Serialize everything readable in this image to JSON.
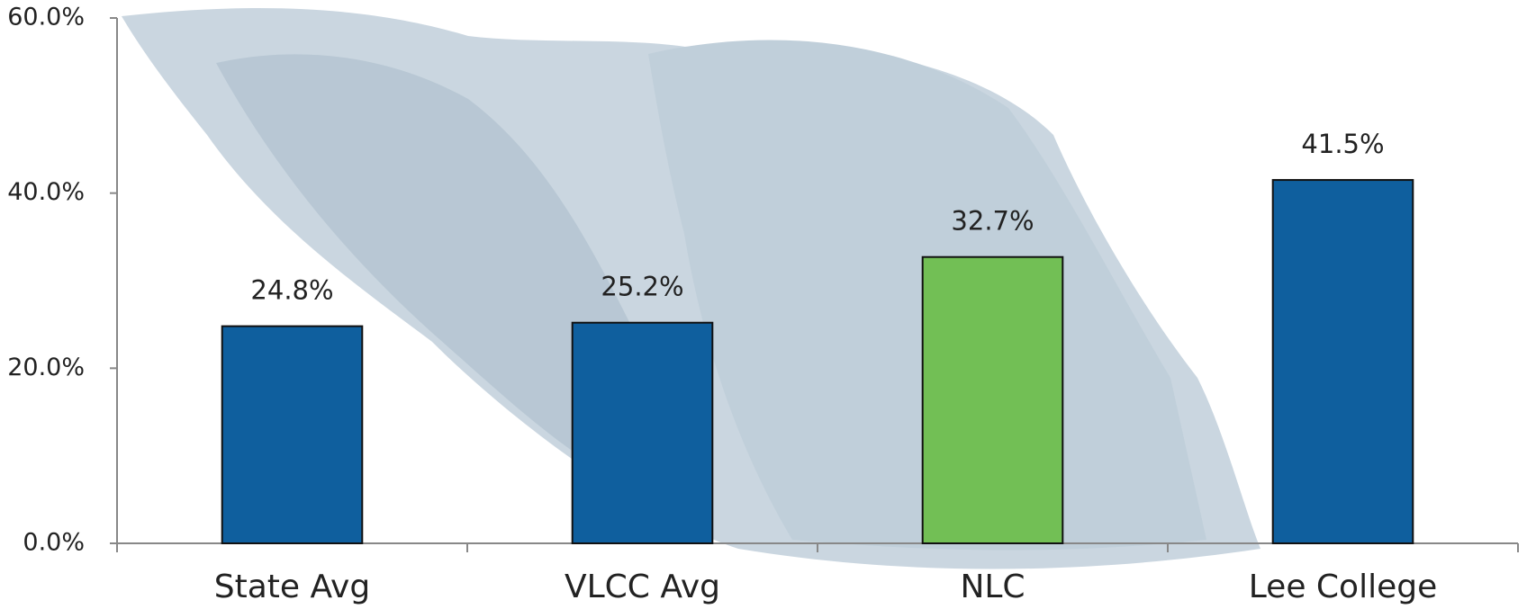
{
  "chart_data": {
    "type": "bar",
    "categories": [
      "State Avg",
      "VLCC Avg",
      "NLC",
      "Lee College"
    ],
    "values": [
      24.8,
      25.2,
      32.7,
      41.5
    ],
    "value_labels": [
      "24.8%",
      "25.2%",
      "32.7%",
      "41.5%"
    ],
    "colors": [
      "#0f5f9e",
      "#0f5f9e",
      "#72bf55",
      "#0f5f9e"
    ],
    "ylim": [
      0,
      60
    ],
    "yticks": [
      {
        "value": 0,
        "label": "0.0%"
      },
      {
        "value": 20,
        "label": "20.0%"
      },
      {
        "value": 40,
        "label": "40.0%"
      },
      {
        "value": 60,
        "label": "60.0%"
      }
    ],
    "grid": false
  }
}
